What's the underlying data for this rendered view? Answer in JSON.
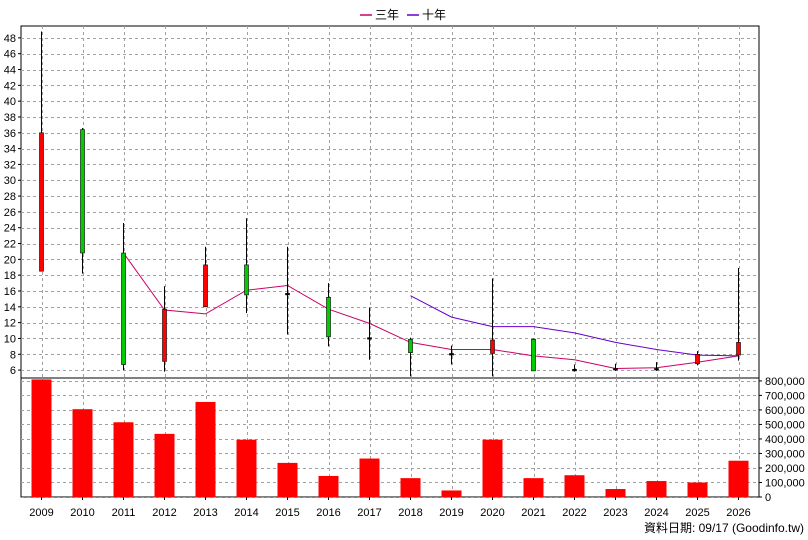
{
  "chart_data": {
    "type": "candlestick+line+bar",
    "categories": [
      "2009",
      "2010",
      "2011",
      "2012",
      "2013",
      "2014",
      "2015",
      "2016",
      "2017",
      "2018",
      "2019",
      "2020",
      "2021",
      "2022",
      "2023",
      "2024",
      "2025",
      "2026"
    ],
    "legend": {
      "placement": "top-center",
      "items": [
        {
          "name": "三年",
          "color": "#cc0066"
        },
        {
          "name": "十年",
          "color": "#6600cc"
        }
      ]
    },
    "price_axis": {
      "ylim": [
        5,
        49.5
      ],
      "ticks": [
        6,
        8,
        10,
        12,
        14,
        16,
        18,
        20,
        22,
        24,
        26,
        28,
        30,
        32,
        34,
        36,
        38,
        40,
        42,
        44,
        46,
        48
      ],
      "grid": true
    },
    "volume_axis": {
      "ylim": [
        0,
        820000
      ],
      "ticks": [
        0,
        100000,
        200000,
        300000,
        400000,
        500000,
        600000,
        700000,
        800000
      ],
      "tick_labels": [
        "0",
        "100,000",
        "200,000",
        "300,000",
        "400,000",
        "500,000",
        "600,000",
        "700,000",
        "800,000"
      ],
      "grid": true
    },
    "candles": [
      {
        "x": "2009",
        "open": 18.5,
        "close": 36,
        "high": 48.8,
        "low": 18.5,
        "color": "#ff0000"
      },
      {
        "x": "2010",
        "open": 36.4,
        "close": 20.8,
        "high": 36.6,
        "low": 18.2,
        "color": "#00cc00"
      },
      {
        "x": "2011",
        "open": 20.8,
        "close": 6.7,
        "high": 24.6,
        "low": 6.0,
        "color": "#00cc00"
      },
      {
        "x": "2012",
        "open": 7.1,
        "close": 13.7,
        "high": 16.6,
        "low": 5.8,
        "color": "#ff0000"
      },
      {
        "x": "2013",
        "open": 14.0,
        "close": 19.3,
        "high": 21.6,
        "low": 14.0,
        "color": "#ff0000"
      },
      {
        "x": "2014",
        "open": 19.3,
        "close": 15.5,
        "high": 25.2,
        "low": 13.2,
        "color": "#00cc00"
      },
      {
        "x": "2015",
        "open": 15.7,
        "close": 15.7,
        "high": 21.6,
        "low": 10.5,
        "color": "#000000"
      },
      {
        "x": "2016",
        "open": 15.2,
        "close": 10.2,
        "high": 17.0,
        "low": 9.0,
        "color": "#00cc00"
      },
      {
        "x": "2017",
        "open": 10.1,
        "close": 10.1,
        "high": 13.9,
        "low": 7.3,
        "color": "#000000"
      },
      {
        "x": "2018",
        "open": 9.9,
        "close": 8.2,
        "high": 10.1,
        "low": 5.2,
        "color": "#00cc00"
      },
      {
        "x": "2019",
        "open": 7.9,
        "close": 8.1,
        "high": 9.1,
        "low": 6.7,
        "color": "#000000"
      },
      {
        "x": "2020",
        "open": 8.1,
        "close": 9.8,
        "high": 17.6,
        "low": 5.2,
        "color": "#ff0000"
      },
      {
        "x": "2021",
        "open": 9.9,
        "close": 5.9,
        "high": 10.0,
        "low": 5.9,
        "color": "#00cc00"
      },
      {
        "x": "2022",
        "open": 5.9,
        "close": 6.1,
        "high": 6.7,
        "low": 5.8,
        "color": "#000000"
      },
      {
        "x": "2023",
        "open": 6.1,
        "close": 6.2,
        "high": 6.8,
        "low": 5.9,
        "color": "#000000"
      },
      {
        "x": "2024",
        "open": 6.1,
        "close": 6.2,
        "high": 7.0,
        "low": 5.9,
        "color": "#000000"
      },
      {
        "x": "2025",
        "open": 6.8,
        "close": 8.0,
        "high": 8.4,
        "low": 6.6,
        "color": "#ff0000"
      },
      {
        "x": "2026",
        "open": 7.9,
        "close": 9.5,
        "high": 18.9,
        "low": 7.2,
        "color": "#ff0000"
      }
    ],
    "series": [
      {
        "name": "三年",
        "color": "#cc0066",
        "values": [
          null,
          null,
          20.8,
          13.6,
          13.1,
          16.1,
          16.7,
          13.7,
          11.9,
          9.5,
          8.6,
          8.6,
          7.8,
          7.3,
          6.2,
          6.3,
          7.0,
          7.8
        ]
      },
      {
        "name": "十年",
        "color": "#6600cc",
        "values": [
          null,
          null,
          null,
          null,
          null,
          null,
          null,
          null,
          null,
          15.4,
          12.7,
          11.5,
          11.5,
          10.7,
          9.5,
          8.6,
          7.9,
          7.8
        ]
      }
    ],
    "volumes": [
      810000,
      605000,
      515000,
      435000,
      655000,
      395000,
      235000,
      145000,
      265000,
      130000,
      45000,
      395000,
      130000,
      150000,
      55000,
      110000,
      100000,
      250000
    ],
    "volume_color": "#ff0000",
    "footer": "資料日期: 09/17 (Goodinfo.tw)"
  }
}
